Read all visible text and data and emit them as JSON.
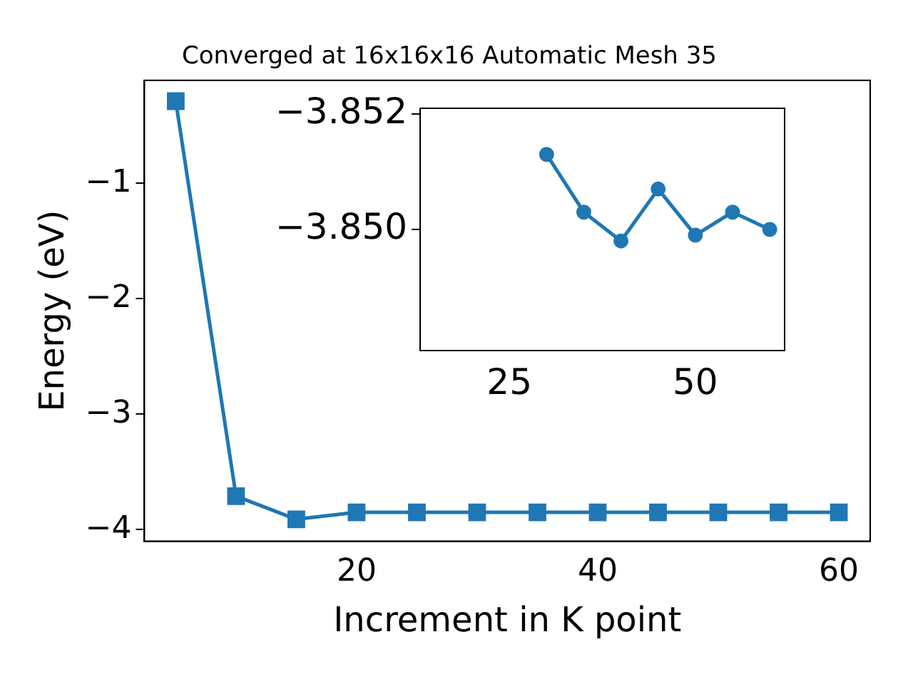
{
  "chart_data": [
    {
      "type": "line",
      "title": "Converged at 16x16x16 Automatic Mesh 35",
      "xlabel": "Increment in K point",
      "ylabel": "Energy (eV)",
      "marker": "square",
      "line_style": "solid",
      "grid": false,
      "legend": false,
      "xlim": [
        2.4,
        62.6
      ],
      "xticks": [
        20,
        40,
        60
      ],
      "ylim": [
        -4.1,
        -0.11
      ],
      "yticks": [
        {
          "value": -4,
          "label": "−4"
        },
        {
          "value": -3,
          "label": "−3"
        },
        {
          "value": -2,
          "label": "−2"
        },
        {
          "value": -1,
          "label": "−1"
        }
      ],
      "x": [
        5,
        10,
        15,
        20,
        25,
        30,
        35,
        40,
        45,
        50,
        55,
        60
      ],
      "series": [
        {
          "color": "#1f77b4",
          "values": [
            -0.29,
            -3.71,
            -3.91,
            -3.85,
            -3.85,
            -3.85,
            -3.85,
            -3.85,
            -3.85,
            -3.85,
            -3.85,
            -3.85
          ]
        }
      ]
    },
    {
      "type": "line",
      "marker": "circle",
      "line_style": "solid",
      "grid": false,
      "legend": false,
      "xlim": [
        13,
        62
      ],
      "xticks": [
        25,
        50
      ],
      "ylim": [
        -3.8479,
        -3.8521
      ],
      "yticks": [
        {
          "value": -3.852,
          "label": "−3.852"
        },
        {
          "value": -3.85,
          "label": "−3.850"
        }
      ],
      "x": [
        30,
        35,
        40,
        45,
        50,
        55,
        60
      ],
      "series": [
        {
          "color": "#1f77b4",
          "values": [
            -3.8513,
            -3.8503,
            -3.8498,
            -3.8507,
            -3.8499,
            -3.8503,
            -3.85
          ]
        }
      ]
    }
  ]
}
